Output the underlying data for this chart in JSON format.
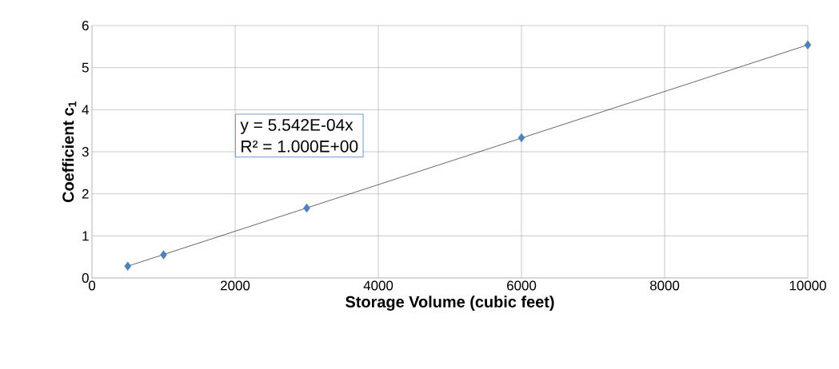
{
  "chart_data": {
    "type": "scatter",
    "xlabel": "Storage Volume (cubic feet)",
    "ylabel": "Coefficient c$_{1}$",
    "x": [
      500,
      1000,
      3000,
      6000,
      10000
    ],
    "series": [
      {
        "color": "#4f81bd",
        "marker": "diamond",
        "values": [
          0.28,
          0.55,
          1.66,
          3.33,
          5.54
        ]
      },
      {
        "type": "line",
        "color": "#000000",
        "marker": "none",
        "line_style": "solid",
        "x": [
          500,
          10000
        ],
        "values": [
          0.28,
          5.54
        ]
      }
    ],
    "annotations": [
      "y = 5.542E-04x",
      "R² = 1.000E+00"
    ],
    "xlim": [
      0,
      10000
    ],
    "xticks": [
      0,
      2000,
      4000,
      6000,
      8000,
      10000
    ],
    "ylim": [
      0,
      6
    ],
    "yticks": [
      0,
      1,
      2,
      3,
      4,
      5,
      6
    ],
    "grid": true
  }
}
